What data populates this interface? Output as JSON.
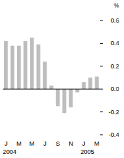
{
  "chart_data": {
    "type": "bar",
    "y_label": "%",
    "categories": [
      "J",
      null,
      "M",
      null,
      "M",
      null,
      "J",
      null,
      "S",
      null,
      "N",
      null,
      "J",
      null,
      "M"
    ],
    "values": [
      0.42,
      0.38,
      0.38,
      0.42,
      0.45,
      0.39,
      0.24,
      0.03,
      -0.15,
      -0.21,
      -0.16,
      -0.03,
      0.06,
      0.1,
      0.11
    ],
    "color": "#bdbdbd",
    "ylim": [
      -0.4,
      0.6
    ],
    "yticks": [
      -0.4,
      -0.2,
      {
        "value": 0,
        "label": "0.0"
      },
      0.2,
      0.4,
      0.6
    ],
    "annotations": [
      {
        "text": "2004",
        "category": 0
      },
      {
        "text": "2005",
        "category": 12
      }
    ]
  }
}
